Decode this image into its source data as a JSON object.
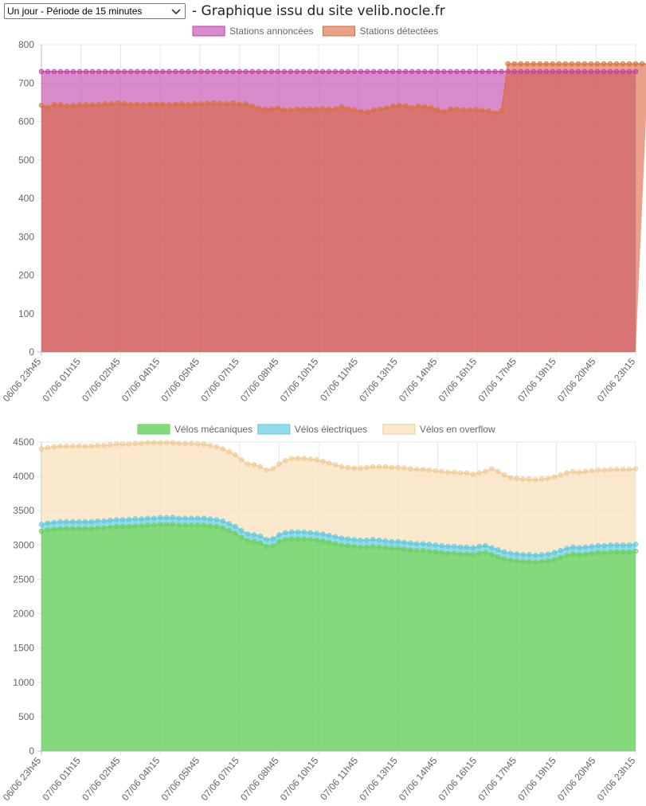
{
  "header": {
    "select_value": "Un jour - Période de 15 minutes",
    "title": "- Graphique issu du site velib.nocle.fr"
  },
  "chart_data": [
    {
      "type": "area",
      "title": "",
      "legend_position": "top",
      "x_labels": [
        "06/06 23h45",
        "07/06 01h15",
        "07/06 02h45",
        "07/06 04h15",
        "07/06 05h45",
        "07/06 07h15",
        "07/06 08h45",
        "07/06 10h15",
        "07/06 11h45",
        "07/06 13h15",
        "07/06 14h45",
        "07/06 16h15",
        "07/06 17h45",
        "07/06 19h15",
        "07/06 20h45",
        "07/06 23h15"
      ],
      "ylim": [
        0,
        800
      ],
      "y_ticks": [
        0,
        100,
        200,
        300,
        400,
        500,
        600,
        700,
        800
      ],
      "series": [
        {
          "name": "Stations annoncées",
          "color": "#c040a8",
          "fill": "rgba(192,64,168,0.6)",
          "values": [
            730,
            730,
            730,
            730,
            730,
            730,
            730,
            730,
            730,
            730,
            730,
            730,
            730,
            730,
            730,
            730,
            730,
            730,
            730,
            730,
            730,
            730,
            730,
            730,
            730,
            730,
            730,
            730,
            730,
            730,
            730,
            730,
            730,
            730,
            730,
            730,
            730,
            730,
            730,
            730,
            730,
            730,
            730,
            730,
            730,
            730,
            730,
            730,
            730,
            730,
            730,
            730,
            730,
            730,
            730,
            730,
            730,
            730,
            730,
            730,
            730,
            730,
            730,
            730,
            730,
            730,
            730,
            730,
            730,
            730,
            730,
            730,
            730,
            730,
            730,
            730,
            730,
            730,
            730,
            730,
            730,
            730,
            730,
            730,
            730,
            730,
            730,
            730,
            730,
            730,
            730,
            730,
            730,
            730
          ]
        },
        {
          "name": "Stations détectées",
          "color": "#d87038",
          "fill": "rgba(216,100,60,0.6)",
          "values": [
            642,
            636,
            645,
            644,
            640,
            642,
            643,
            644,
            643,
            644,
            646,
            646,
            648,
            646,
            644,
            645,
            644,
            645,
            645,
            645,
            644,
            645,
            646,
            644,
            646,
            646,
            647,
            648,
            647,
            646,
            648,
            645,
            646,
            640,
            634,
            632,
            633,
            635,
            630,
            630,
            632,
            632,
            633,
            632,
            634,
            632,
            633,
            638,
            633,
            630,
            626,
            625,
            630,
            632,
            635,
            640,
            642,
            641,
            636,
            640,
            638,
            636,
            630,
            625,
            632,
            632,
            630,
            630,
            631,
            629,
            628,
            622,
            628,
            750,
            750,
            750,
            750,
            750,
            750,
            750,
            750,
            750,
            750,
            750,
            750,
            750,
            750,
            750,
            750,
            750,
            750,
            750,
            750,
            750,
            750,
            750
          ]
        }
      ]
    },
    {
      "type": "area",
      "title": "",
      "legend_position": "top",
      "stacked": true,
      "x_labels": [
        "06/06 23h45",
        "07/06 01h15",
        "07/06 02h45",
        "07/06 04h15",
        "07/06 05h45",
        "07/06 07h15",
        "07/06 08h45",
        "07/06 10h15",
        "07/06 11h45",
        "07/06 13h15",
        "07/06 14h45",
        "07/06 16h15",
        "07/06 17h45",
        "07/06 19h15",
        "07/06 20h45",
        "07/06 23h15"
      ],
      "ylim": [
        0,
        4500
      ],
      "y_ticks": [
        0,
        500,
        1000,
        1500,
        2000,
        2500,
        3000,
        3500,
        4000,
        4500
      ],
      "series": [
        {
          "name": "Vélos mécaniques",
          "color": "#6cd05c",
          "fill": "rgba(100,208,90,0.8)",
          "values": [
            3200,
            3220,
            3230,
            3240,
            3240,
            3240,
            3240,
            3240,
            3240,
            3250,
            3250,
            3260,
            3270,
            3270,
            3270,
            3280,
            3280,
            3290,
            3290,
            3300,
            3300,
            3300,
            3290,
            3290,
            3290,
            3290,
            3290,
            3280,
            3270,
            3250,
            3210,
            3170,
            3110,
            3060,
            3050,
            3030,
            2980,
            2990,
            3050,
            3080,
            3090,
            3090,
            3090,
            3080,
            3070,
            3060,
            3040,
            3020,
            3000,
            2990,
            2980,
            2970,
            2970,
            2980,
            2970,
            2960,
            2950,
            2950,
            2940,
            2930,
            2920,
            2920,
            2910,
            2900,
            2890,
            2880,
            2880,
            2870,
            2870,
            2860,
            2880,
            2890,
            2860,
            2830,
            2800,
            2780,
            2770,
            2760,
            2760,
            2750,
            2760,
            2770,
            2790,
            2820,
            2850,
            2870,
            2860,
            2870,
            2880,
            2890,
            2890,
            2900,
            2900,
            2900,
            2900,
            2910
          ]
        },
        {
          "name": "Vélos électriques",
          "color": "#5ac8e0",
          "fill": "rgba(120,210,230,0.8)",
          "values": [
            100,
            100,
            100,
            100,
            100,
            100,
            100,
            100,
            100,
            100,
            100,
            100,
            100,
            100,
            100,
            100,
            100,
            100,
            100,
            100,
            100,
            100,
            100,
            100,
            100,
            100,
            100,
            100,
            100,
            100,
            100,
            100,
            100,
            100,
            100,
            100,
            100,
            100,
            100,
            100,
            100,
            100,
            100,
            100,
            100,
            100,
            100,
            100,
            100,
            100,
            100,
            100,
            100,
            100,
            100,
            100,
            100,
            100,
            100,
            100,
            100,
            100,
            100,
            100,
            100,
            100,
            100,
            100,
            100,
            100,
            100,
            100,
            100,
            100,
            100,
            100,
            100,
            100,
            100,
            100,
            100,
            100,
            100,
            100,
            100,
            100,
            100,
            100,
            100,
            100,
            100,
            100,
            100,
            100,
            100,
            100
          ]
        },
        {
          "name": "Vélos en overflow",
          "color": "#f0c890",
          "fill": "rgba(250,225,190,0.75)",
          "values": [
            1100,
            1100,
            1100,
            1100,
            1100,
            1100,
            1100,
            1100,
            1100,
            1100,
            1100,
            1100,
            1100,
            1100,
            1100,
            1100,
            1100,
            1100,
            1100,
            1090,
            1090,
            1090,
            1090,
            1090,
            1090,
            1080,
            1080,
            1070,
            1060,
            1050,
            1050,
            1040,
            1030,
            1020,
            1020,
            1010,
            1010,
            1020,
            1030,
            1050,
            1070,
            1070,
            1070,
            1070,
            1070,
            1060,
            1050,
            1050,
            1040,
            1040,
            1040,
            1050,
            1060,
            1060,
            1070,
            1080,
            1080,
            1080,
            1080,
            1080,
            1080,
            1080,
            1080,
            1080,
            1080,
            1080,
            1080,
            1080,
            1080,
            1070,
            1070,
            1080,
            1150,
            1140,
            1120,
            1100,
            1100,
            1100,
            1100,
            1100,
            1100,
            1100,
            1100,
            1100,
            1100,
            1100,
            1100,
            1100,
            1100,
            1100,
            1100,
            1100,
            1100,
            1100,
            1100,
            1100
          ]
        }
      ]
    }
  ]
}
